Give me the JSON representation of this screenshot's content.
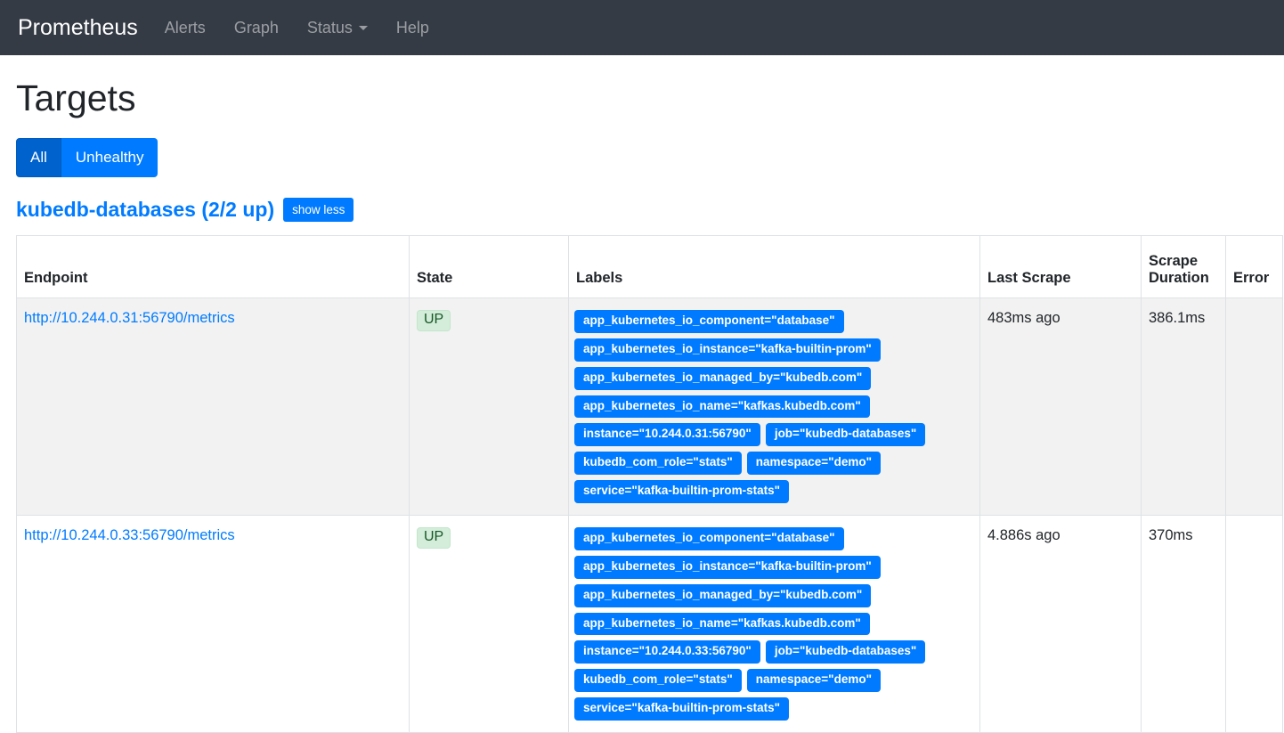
{
  "navbar": {
    "brand": "Prometheus",
    "items": [
      {
        "label": "Alerts",
        "caret": false
      },
      {
        "label": "Graph",
        "caret": false
      },
      {
        "label": "Status",
        "caret": true
      },
      {
        "label": "Help",
        "caret": false
      }
    ]
  },
  "page": {
    "title": "Targets",
    "filters": [
      {
        "label": "All",
        "active": true
      },
      {
        "label": "Unhealthy",
        "active": false
      }
    ],
    "job": {
      "heading": "kubedb-databases (2/2 up)",
      "toggle_label": "show less"
    }
  },
  "table": {
    "headers": [
      "Endpoint",
      "State",
      "Labels",
      "Last Scrape",
      "Scrape Duration",
      "Error"
    ],
    "rows": [
      {
        "endpoint": "http://10.244.0.31:56790/metrics",
        "state": "UP",
        "labels": [
          "app_kubernetes_io_component=\"database\"",
          "app_kubernetes_io_instance=\"kafka-builtin-prom\"",
          "app_kubernetes_io_managed_by=\"kubedb.com\"",
          "app_kubernetes_io_name=\"kafkas.kubedb.com\"",
          "instance=\"10.244.0.31:56790\"",
          "job=\"kubedb-databases\"",
          "kubedb_com_role=\"stats\"",
          "namespace=\"demo\"",
          "service=\"kafka-builtin-prom-stats\""
        ],
        "last_scrape": "483ms ago",
        "scrape_duration": "386.1ms",
        "error": ""
      },
      {
        "endpoint": "http://10.244.0.33:56790/metrics",
        "state": "UP",
        "labels": [
          "app_kubernetes_io_component=\"database\"",
          "app_kubernetes_io_instance=\"kafka-builtin-prom\"",
          "app_kubernetes_io_managed_by=\"kubedb.com\"",
          "app_kubernetes_io_name=\"kafkas.kubedb.com\"",
          "instance=\"10.244.0.33:56790\"",
          "job=\"kubedb-databases\"",
          "kubedb_com_role=\"stats\"",
          "namespace=\"demo\"",
          "service=\"kafka-builtin-prom-stats\""
        ],
        "last_scrape": "4.886s ago",
        "scrape_duration": "370ms",
        "error": ""
      }
    ]
  },
  "colors": {
    "navbar_bg": "#343b44",
    "primary": "#007bff",
    "primary_active": "#0062cc",
    "success_bg": "#d4edda",
    "success_text": "#155724",
    "success_border": "#c3e6cb",
    "row_stripe": "#f2f2f2",
    "border": "#dee2e6",
    "text": "#212529"
  }
}
